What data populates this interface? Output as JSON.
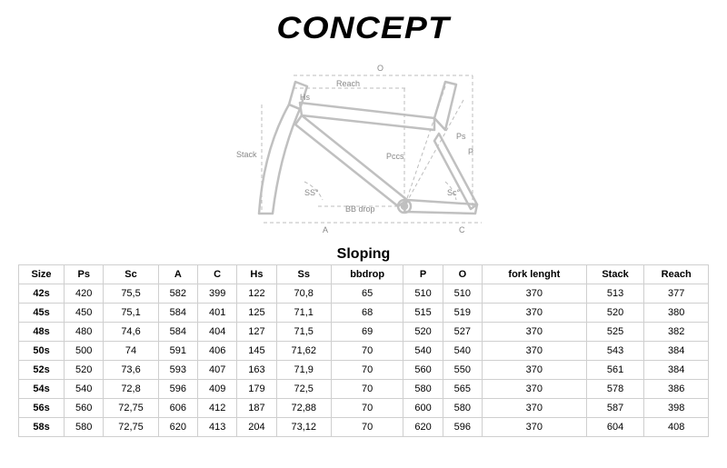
{
  "brand": "CONCEPT",
  "diagram": {
    "stroke": "#c0c0c0",
    "label_color": "#888888",
    "label_fontsize": 9,
    "labels": {
      "o": "O",
      "reach": "Reach",
      "hs": "Hs",
      "stack": "Stack",
      "pccs": "Pccs",
      "ps": "Ps",
      "p": "P",
      "ss": "SS°",
      "sc": "Sc°",
      "bbdrop": "BB drop",
      "a": "A",
      "c": "C"
    }
  },
  "table": {
    "title": "Sloping",
    "columns": [
      "Size",
      "Ps",
      "Sc",
      "A",
      "C",
      "Hs",
      "Ss",
      "bbdrop",
      "P",
      "O",
      "fork lenght",
      "Stack",
      "Reach"
    ],
    "rows": [
      [
        "42s",
        "420",
        "75,5",
        "582",
        "399",
        "122",
        "70,8",
        "65",
        "510",
        "510",
        "370",
        "513",
        "377"
      ],
      [
        "45s",
        "450",
        "75,1",
        "584",
        "401",
        "125",
        "71,1",
        "68",
        "515",
        "519",
        "370",
        "520",
        "380"
      ],
      [
        "48s",
        "480",
        "74,6",
        "584",
        "404",
        "127",
        "71,5",
        "69",
        "520",
        "527",
        "370",
        "525",
        "382"
      ],
      [
        "50s",
        "500",
        "74",
        "591",
        "406",
        "145",
        "71,62",
        "70",
        "540",
        "540",
        "370",
        "543",
        "384"
      ],
      [
        "52s",
        "520",
        "73,6",
        "593",
        "407",
        "163",
        "71,9",
        "70",
        "560",
        "550",
        "370",
        "561",
        "384"
      ],
      [
        "54s",
        "540",
        "72,8",
        "596",
        "409",
        "179",
        "72,5",
        "70",
        "580",
        "565",
        "370",
        "578",
        "386"
      ],
      [
        "56s",
        "560",
        "72,75",
        "606",
        "412",
        "187",
        "72,88",
        "70",
        "600",
        "580",
        "370",
        "587",
        "398"
      ],
      [
        "58s",
        "580",
        "72,75",
        "620",
        "413",
        "204",
        "73,12",
        "70",
        "620",
        "596",
        "370",
        "604",
        "408"
      ]
    ],
    "border_color": "#cfcfcf",
    "header_fontweight": 700,
    "cell_fontsize": 11
  }
}
